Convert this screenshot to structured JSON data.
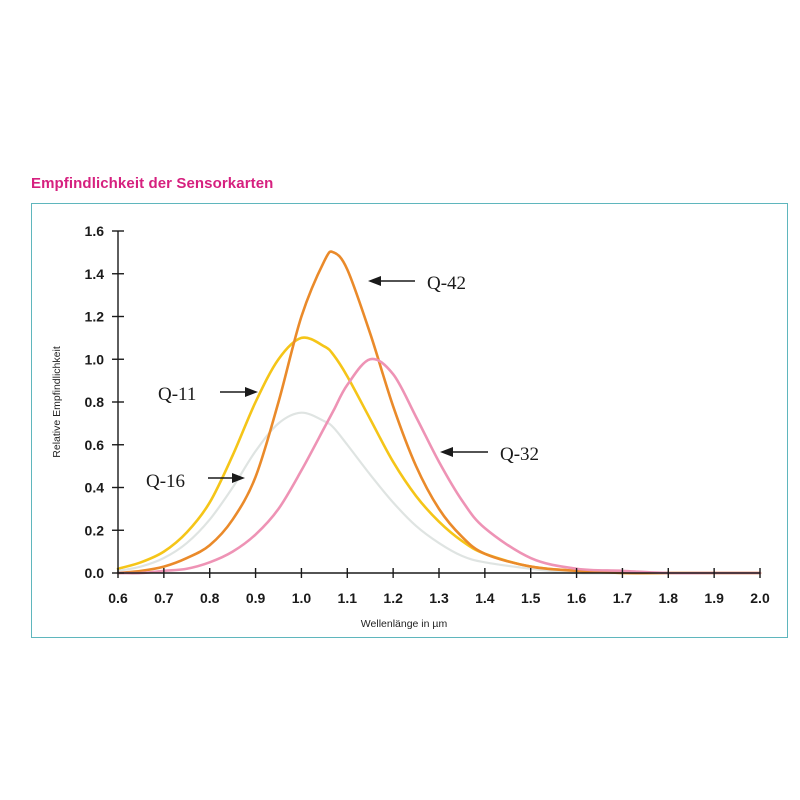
{
  "title": "Empfindlichkeit der Sensorkarten",
  "chart_data": {
    "type": "line",
    "title": "Empfindlichkeit der Sensorkarten",
    "xlabel": "Wellenlänge in µm",
    "ylabel": "Relative Empfindlichkeit",
    "xlim": [
      0.6,
      2.0
    ],
    "ylim": [
      0.0,
      1.6
    ],
    "xticks": [
      "0.6",
      "0.7",
      "0.8",
      "0.9",
      "1.0",
      "1.1",
      "1.2",
      "1.3",
      "1.4",
      "1.5",
      "1.6",
      "1.7",
      "1.8",
      "1.9",
      "2.0"
    ],
    "yticks": [
      "0.0",
      "0.2",
      "0.4",
      "0.6",
      "0.8",
      "1.0",
      "1.2",
      "1.4",
      "1.6"
    ],
    "grid": false,
    "legend": "inline arrow annotations",
    "x": [
      0.6,
      0.65,
      0.7,
      0.75,
      0.8,
      0.85,
      0.9,
      0.95,
      1.0,
      1.05,
      1.07,
      1.1,
      1.15,
      1.2,
      1.25,
      1.3,
      1.35,
      1.4,
      1.5,
      1.6,
      1.7,
      1.8,
      1.9,
      2.0
    ],
    "series": [
      {
        "name": "Q-11",
        "color": "#f5c518",
        "values": [
          0.02,
          0.05,
          0.1,
          0.19,
          0.33,
          0.55,
          0.8,
          1.0,
          1.1,
          1.06,
          1.02,
          0.92,
          0.72,
          0.52,
          0.36,
          0.24,
          0.15,
          0.09,
          0.03,
          0.01,
          0.0,
          0.0,
          0.0,
          0.0
        ]
      },
      {
        "name": "Q-16",
        "color": "#dfe4e2",
        "values": [
          0.01,
          0.03,
          0.07,
          0.14,
          0.25,
          0.4,
          0.57,
          0.7,
          0.75,
          0.71,
          0.68,
          0.6,
          0.46,
          0.33,
          0.22,
          0.14,
          0.08,
          0.05,
          0.02,
          0.0,
          0.0,
          0.0,
          0.0,
          0.0
        ]
      },
      {
        "name": "Q-42",
        "color": "#ea8a2a",
        "values": [
          0.0,
          0.01,
          0.03,
          0.07,
          0.13,
          0.25,
          0.45,
          0.8,
          1.2,
          1.46,
          1.5,
          1.42,
          1.12,
          0.78,
          0.5,
          0.3,
          0.17,
          0.09,
          0.03,
          0.01,
          0.0,
          0.0,
          0.0,
          0.0
        ]
      },
      {
        "name": "Q-32",
        "color": "#ee93b5",
        "values": [
          0.0,
          0.0,
          0.01,
          0.02,
          0.05,
          0.1,
          0.18,
          0.3,
          0.48,
          0.68,
          0.76,
          0.88,
          1.0,
          0.93,
          0.73,
          0.52,
          0.34,
          0.21,
          0.07,
          0.02,
          0.01,
          0.0,
          0.0,
          0.0
        ]
      }
    ],
    "annotations": [
      {
        "text": "Q-42",
        "arrow": "left",
        "x": 1.17,
        "y": 1.37
      },
      {
        "text": "Q-11",
        "arrow": "right",
        "x": 0.95,
        "y": 0.85
      },
      {
        "text": "Q-16",
        "arrow": "right",
        "x": 0.88,
        "y": 0.45
      },
      {
        "text": "Q-32",
        "arrow": "left",
        "x": 1.32,
        "y": 0.56
      }
    ]
  }
}
